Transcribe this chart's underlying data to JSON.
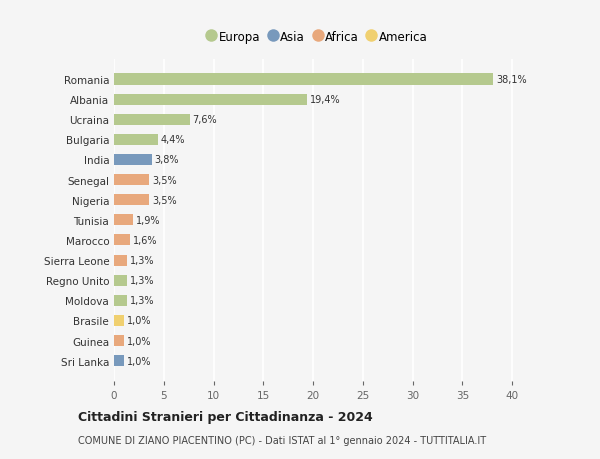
{
  "countries": [
    "Romania",
    "Albania",
    "Ucraina",
    "Bulgaria",
    "India",
    "Senegal",
    "Nigeria",
    "Tunisia",
    "Marocco",
    "Sierra Leone",
    "Regno Unito",
    "Moldova",
    "Brasile",
    "Guinea",
    "Sri Lanka"
  ],
  "values": [
    38.1,
    19.4,
    7.6,
    4.4,
    3.8,
    3.5,
    3.5,
    1.9,
    1.6,
    1.3,
    1.3,
    1.3,
    1.0,
    1.0,
    1.0
  ],
  "labels": [
    "38,1%",
    "19,4%",
    "7,6%",
    "4,4%",
    "3,8%",
    "3,5%",
    "3,5%",
    "1,9%",
    "1,6%",
    "1,3%",
    "1,3%",
    "1,3%",
    "1,0%",
    "1,0%",
    "1,0%"
  ],
  "continents": [
    "Europa",
    "Europa",
    "Europa",
    "Europa",
    "Asia",
    "Africa",
    "Africa",
    "Africa",
    "Africa",
    "Africa",
    "Europa",
    "Europa",
    "America",
    "Africa",
    "Asia"
  ],
  "continent_colors": {
    "Europa": "#b5c98e",
    "Asia": "#7899bc",
    "Africa": "#e8a87c",
    "America": "#f0d070"
  },
  "legend_order": [
    "Europa",
    "Asia",
    "Africa",
    "America"
  ],
  "title": "Cittadini Stranieri per Cittadinanza - 2024",
  "subtitle": "COMUNE DI ZIANO PIACENTINO (PC) - Dati ISTAT al 1° gennaio 2024 - TUTTITALIA.IT",
  "xlim": [
    0,
    41
  ],
  "xticks": [
    0,
    5,
    10,
    15,
    20,
    25,
    30,
    35,
    40
  ],
  "background_color": "#f5f5f5",
  "grid_color": "#ffffff"
}
